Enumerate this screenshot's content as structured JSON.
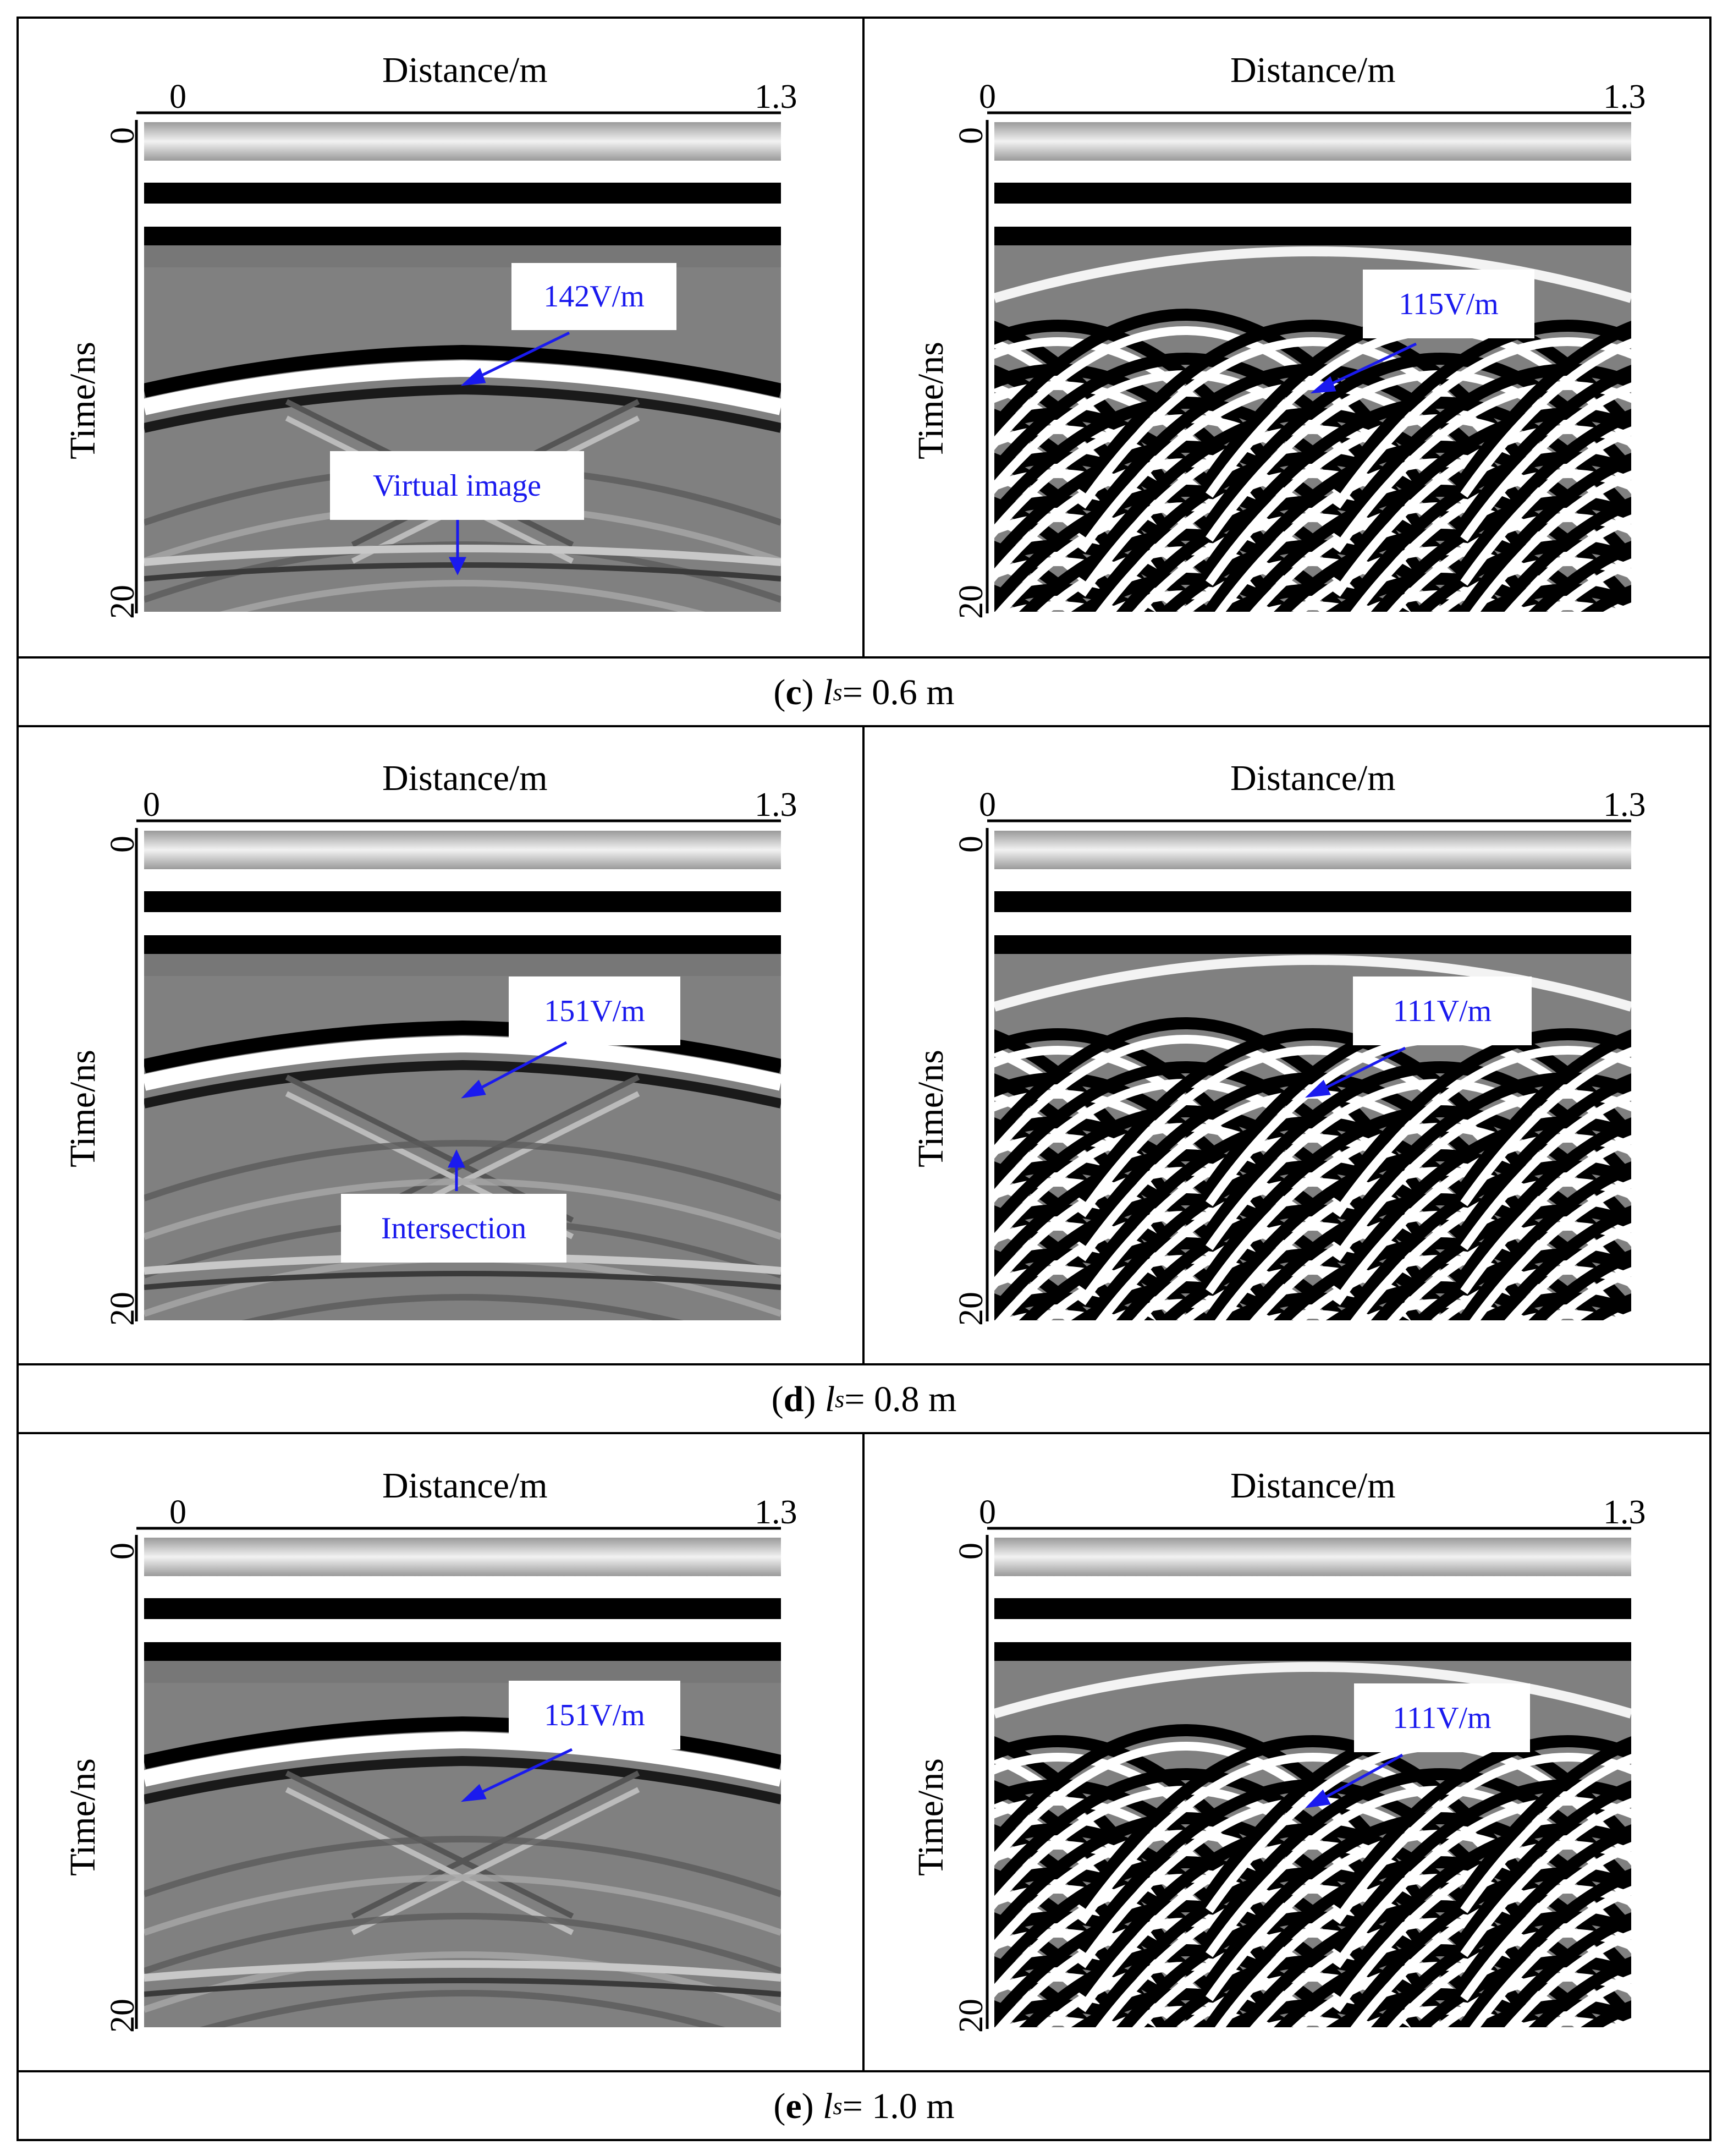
{
  "figure": {
    "rows": [
      {
        "caption": {
          "prefix": "(",
          "letter": "c",
          "suffix": ")",
          "symbol": "l",
          "subscript": "s",
          "equals": " = 0.6 m"
        },
        "panels": [
          {
            "side": "left",
            "x_axis": {
              "label": "Distance/m",
              "start": "0",
              "end": "1.3"
            },
            "y_axis": {
              "label": "Time/ns",
              "start": "0",
              "end": "20"
            },
            "callouts": [
              {
                "text": "142V/m"
              },
              {
                "text": "Virtual image"
              }
            ]
          },
          {
            "side": "right",
            "x_axis": {
              "label": "Distance/m",
              "start": "0",
              "end": "1.3"
            },
            "y_axis": {
              "label": "Time/ns",
              "start": "0",
              "end": "20"
            },
            "callouts": [
              {
                "text": "115V/m"
              }
            ]
          }
        ]
      },
      {
        "caption": {
          "prefix": "(",
          "letter": "d",
          "suffix": ")",
          "symbol": "l",
          "subscript": "s",
          "equals": " = 0.8 m"
        },
        "panels": [
          {
            "side": "left",
            "x_axis": {
              "label": "Distance/m",
              "start": "0",
              "end": "1.3"
            },
            "y_axis": {
              "label": "Time/ns",
              "start": "0",
              "end": "20"
            },
            "callouts": [
              {
                "text": "151V/m"
              },
              {
                "text": "Intersection"
              }
            ]
          },
          {
            "side": "right",
            "x_axis": {
              "label": "Distance/m",
              "start": "0",
              "end": "1.3"
            },
            "y_axis": {
              "label": "Time/ns",
              "start": "0",
              "end": "20"
            },
            "callouts": [
              {
                "text": "111V/m"
              }
            ]
          }
        ]
      },
      {
        "caption": {
          "prefix": "(",
          "letter": "e",
          "suffix": ")",
          "symbol": "l",
          "subscript": "s",
          "equals": " = 1.0 m"
        },
        "panels": [
          {
            "side": "left",
            "x_axis": {
              "label": "Distance/m",
              "start": "0",
              "end": "1.3"
            },
            "y_axis": {
              "label": "Time/ns",
              "start": "0",
              "end": "20"
            },
            "callouts": [
              {
                "text": "151V/m"
              }
            ]
          },
          {
            "side": "right",
            "x_axis": {
              "label": "Distance/m",
              "start": "0",
              "end": "1.3"
            },
            "y_axis": {
              "label": "Time/ns",
              "start": "0",
              "end": "20"
            },
            "callouts": [
              {
                "text": "111V/m"
              }
            ]
          }
        ]
      }
    ],
    "colors": {
      "arrow": "#1a1aee",
      "callout_text": "#1a1aee",
      "border": "#000000",
      "radar_background": "#808080"
    }
  }
}
